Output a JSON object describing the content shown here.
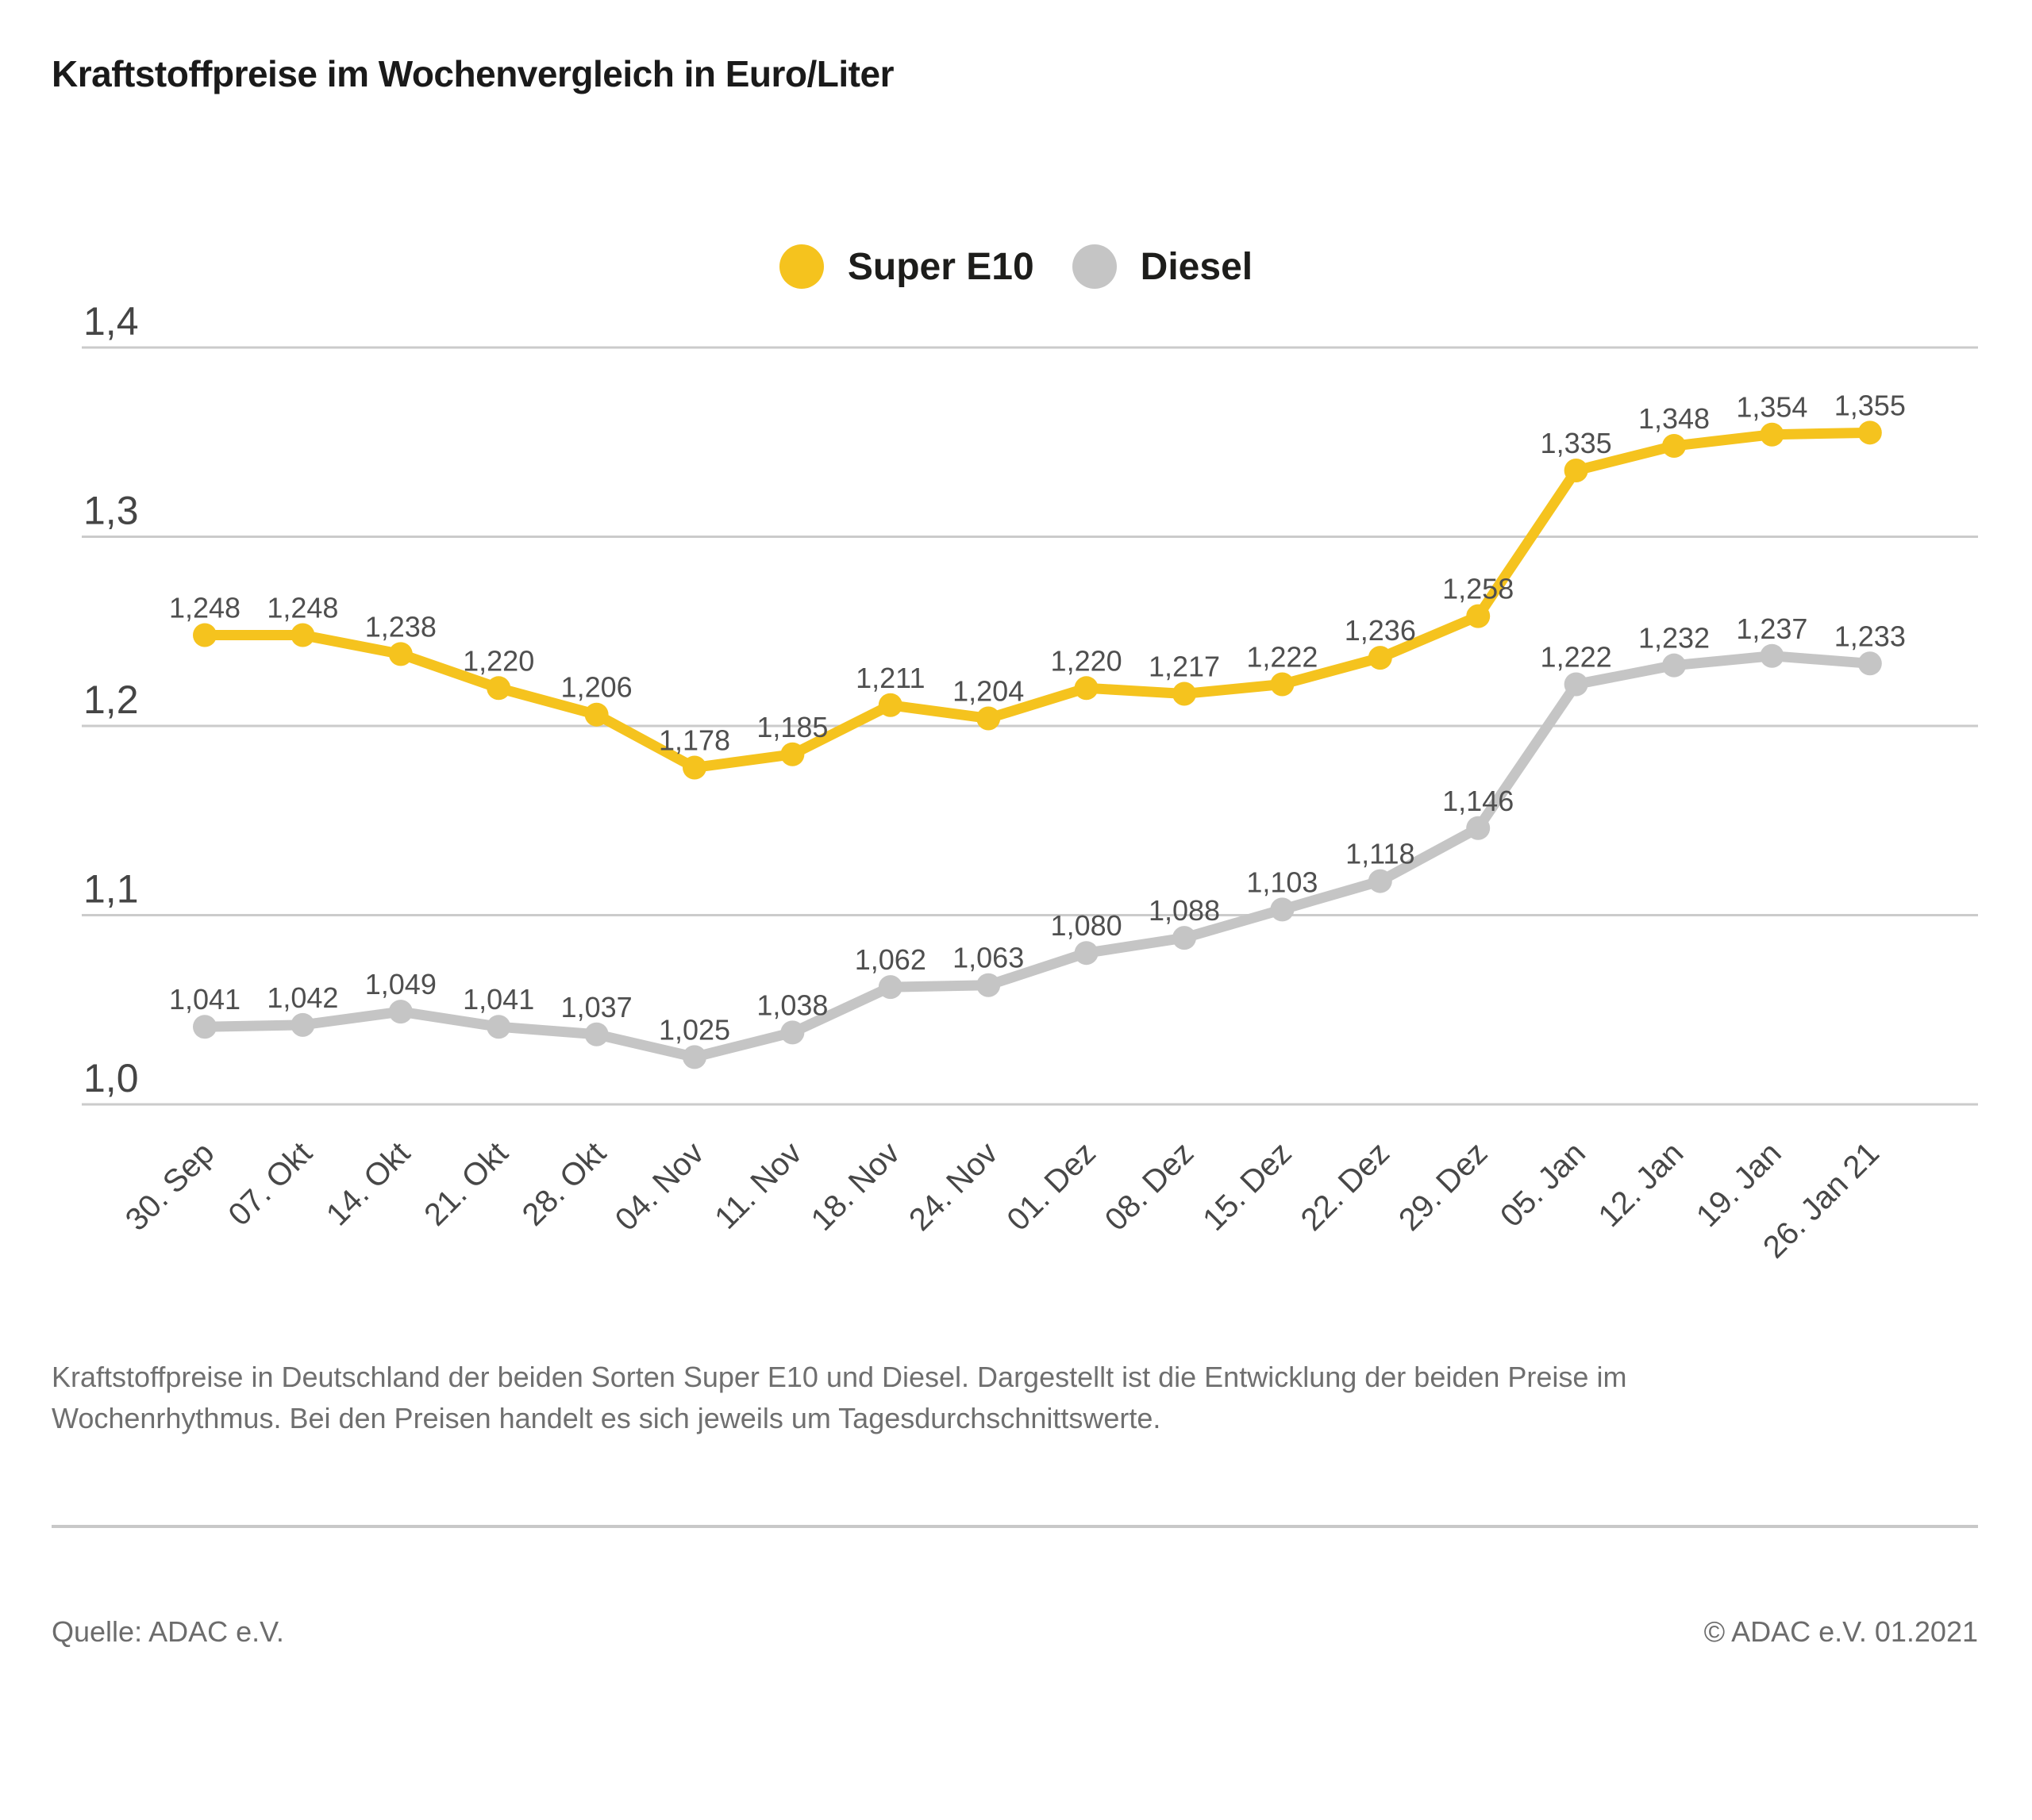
{
  "title": "Kraftstoffpreise im Wochenvergleich in Euro/Liter",
  "caption": "Kraftstoffpreise in Deutschland der beiden Sorten Super E10 und Diesel. Dargestellt ist die Entwicklung der beiden Preise im Wochenrhythmus. Bei den Preisen handelt es sich jeweils um Tagesdurchschnittswerte.",
  "footer": {
    "source": "Quelle: ADAC e.V.",
    "copyright": "© ADAC e.V. 01.2021"
  },
  "colors": {
    "super_e10": "#F5C31E",
    "diesel": "#C5C5C5",
    "grid": "#CBCBCB",
    "value_label": "#4F4F4F",
    "axis_label": "#454545"
  },
  "chart_data": {
    "type": "line",
    "title": "Kraftstoffpreise im Wochenvergleich in Euro/Liter",
    "xlabel": "",
    "ylabel": "Euro/Liter",
    "ylim": [
      1.0,
      1.4
    ],
    "grid": true,
    "legend_position": "top-center",
    "decimal_separator": ",",
    "categories": [
      "30. Sep",
      "07. Okt",
      "14. Okt",
      "21. Okt",
      "28. Okt",
      "04. Nov",
      "11. Nov",
      "18. Nov",
      "24. Nov",
      "01. Dez",
      "08. Dez",
      "15. Dez",
      "22. Dez",
      "29. Dez",
      "05. Jan",
      "12. Jan",
      "19. Jan",
      "26. Jan 21"
    ],
    "y_ticks": [
      {
        "value": 1.0,
        "label": "1,0"
      },
      {
        "value": 1.1,
        "label": "1,1"
      },
      {
        "value": 1.2,
        "label": "1,2"
      },
      {
        "value": 1.3,
        "label": "1,3"
      },
      {
        "value": 1.4,
        "label": "1,4"
      }
    ],
    "series": [
      {
        "name": "Super E10",
        "color": "#F5C31E",
        "values": [
          1.248,
          1.248,
          1.238,
          1.22,
          1.206,
          1.178,
          1.185,
          1.211,
          1.204,
          1.22,
          1.217,
          1.222,
          1.236,
          1.258,
          1.335,
          1.348,
          1.354,
          1.355
        ]
      },
      {
        "name": "Diesel",
        "color": "#C5C5C5",
        "values": [
          1.041,
          1.042,
          1.049,
          1.041,
          1.037,
          1.025,
          1.038,
          1.062,
          1.063,
          1.08,
          1.088,
          1.103,
          1.118,
          1.146,
          1.222,
          1.232,
          1.237,
          1.233
        ]
      }
    ]
  }
}
